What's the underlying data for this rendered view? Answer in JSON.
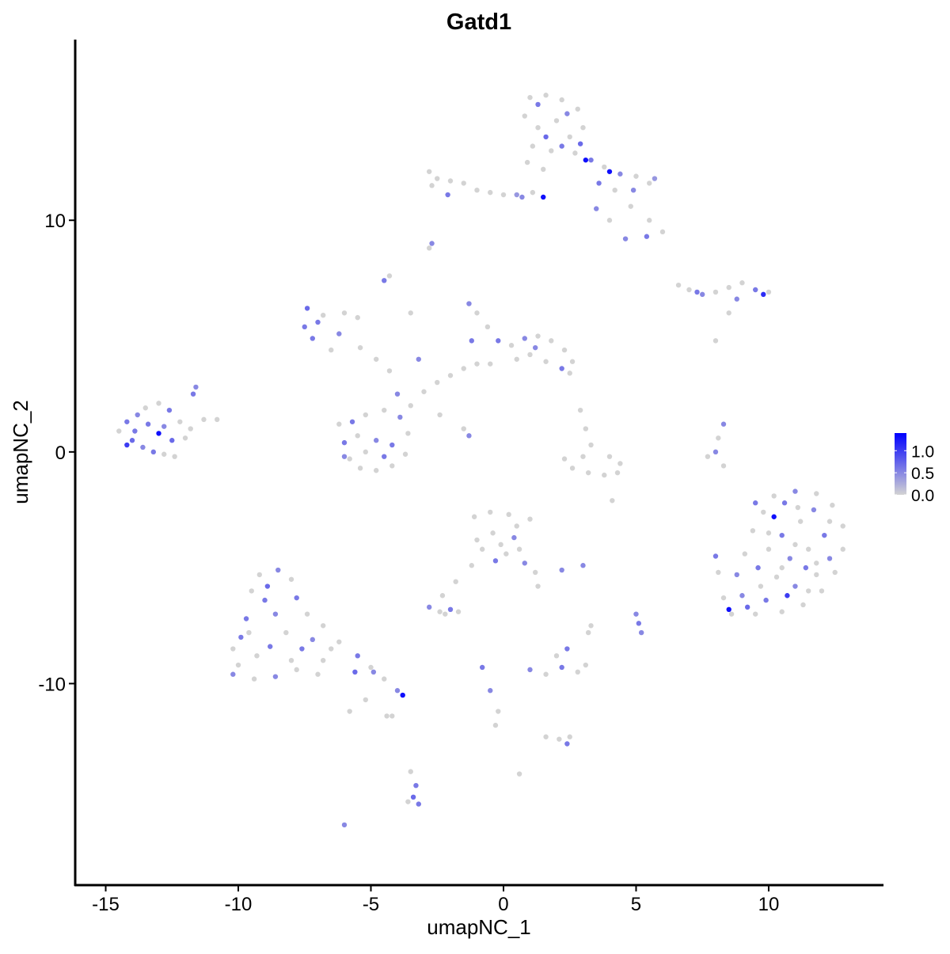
{
  "chart_data": {
    "type": "scatter",
    "title": "Gatd1",
    "xlabel": "umapNC_1",
    "ylabel": "umapNC_2",
    "xlim": [
      -16.15,
      14.3
    ],
    "ylim": [
      -18.7,
      17.8
    ],
    "x_ticks": [
      -15,
      -10,
      -5,
      0,
      5,
      10
    ],
    "x_tick_labels": [
      "-15",
      "-10",
      "-5",
      "0",
      "5",
      "10"
    ],
    "y_ticks": [
      10,
      0,
      -10
    ],
    "y_tick_labels": [
      "10",
      "0",
      "-10"
    ],
    "grid": false,
    "legend": {
      "placement": "right",
      "type": "colorbar",
      "ticks": [
        1.0,
        0.5,
        0.0
      ],
      "tick_labels": [
        "1.0",
        "0.5",
        "0.0"
      ],
      "range": [
        0,
        1.4
      ],
      "low_color": "#d3d3d3",
      "high_color": "#0000ff"
    },
    "point_fields": [
      "x",
      "y",
      "expression"
    ],
    "points": [
      [
        1.0,
        15.3,
        0
      ],
      [
        1.6,
        15.4,
        0
      ],
      [
        2.2,
        15.2,
        0
      ],
      [
        2.8,
        14.8,
        0
      ],
      [
        3.0,
        14.0,
        0
      ],
      [
        0.8,
        14.5,
        0
      ],
      [
        1.3,
        14.0,
        0
      ],
      [
        2.0,
        14.3,
        0
      ],
      [
        2.5,
        13.6,
        0
      ],
      [
        1.1,
        13.2,
        0
      ],
      [
        1.8,
        13.0,
        0
      ],
      [
        2.7,
        12.9,
        0
      ],
      [
        0.9,
        12.5,
        0
      ],
      [
        1.5,
        12.2,
        0
      ],
      [
        3.3,
        12.6,
        0.6
      ],
      [
        3.8,
        12.3,
        0
      ],
      [
        4.4,
        12.0,
        0.5
      ],
      [
        5.0,
        11.9,
        0
      ],
      [
        5.5,
        11.6,
        0
      ],
      [
        5.7,
        11.8,
        0.4
      ],
      [
        4.2,
        11.3,
        0
      ],
      [
        4.8,
        10.6,
        0
      ],
      [
        5.5,
        10.0,
        0
      ],
      [
        6.0,
        9.5,
        0
      ],
      [
        5.4,
        9.3,
        0.6
      ],
      [
        4.6,
        9.2,
        0.5
      ],
      [
        4.0,
        10.0,
        0
      ],
      [
        3.5,
        10.5,
        0.5
      ],
      [
        1.3,
        15.0,
        0.6
      ],
      [
        2.4,
        14.6,
        0.5
      ],
      [
        1.6,
        13.6,
        0.7
      ],
      [
        2.2,
        13.2,
        0.6
      ],
      [
        2.9,
        13.3,
        0.7
      ],
      [
        3.1,
        12.6,
        1.3
      ],
      [
        4.0,
        12.1,
        1.3
      ],
      [
        1.5,
        11.0,
        1.3
      ],
      [
        3.6,
        11.6,
        0.6
      ],
      [
        4.9,
        11.3,
        0.5
      ],
      [
        0.5,
        11.1,
        0.4
      ],
      [
        -2.8,
        12.1,
        0
      ],
      [
        -2.5,
        11.8,
        0
      ],
      [
        -2.0,
        11.7,
        0
      ],
      [
        -1.5,
        11.6,
        0
      ],
      [
        -1.0,
        11.3,
        0
      ],
      [
        -0.5,
        11.2,
        0
      ],
      [
        0.0,
        11.1,
        0
      ],
      [
        -2.7,
        11.5,
        0
      ],
      [
        -2.1,
        11.1,
        0.6
      ],
      [
        0.7,
        11.0,
        0.5
      ],
      [
        1.1,
        11.2,
        0
      ],
      [
        -2.7,
        9.0,
        0.5
      ],
      [
        -2.8,
        8.8,
        0
      ],
      [
        6.6,
        7.2,
        0
      ],
      [
        7.0,
        7.0,
        0
      ],
      [
        7.5,
        6.8,
        0.5
      ],
      [
        8.0,
        6.9,
        0
      ],
      [
        8.5,
        7.1,
        0
      ],
      [
        9.0,
        7.3,
        0
      ],
      [
        9.5,
        7.0,
        0.6
      ],
      [
        9.8,
        6.8,
        1.1
      ],
      [
        10.0,
        6.9,
        0
      ],
      [
        8.8,
        6.6,
        0.5
      ],
      [
        7.3,
        6.9,
        0.6
      ],
      [
        8.5,
        6.0,
        0
      ],
      [
        8.0,
        4.8,
        0
      ],
      [
        -14.5,
        0.9,
        0
      ],
      [
        -14.2,
        1.3,
        0.6
      ],
      [
        -13.8,
        1.6,
        0.5
      ],
      [
        -13.5,
        1.9,
        0
      ],
      [
        -13.0,
        2.1,
        0
      ],
      [
        -12.6,
        1.8,
        0.6
      ],
      [
        -12.2,
        1.3,
        0
      ],
      [
        -11.8,
        1.0,
        0
      ],
      [
        -11.3,
        1.4,
        0
      ],
      [
        -10.8,
        1.4,
        0
      ],
      [
        -11.6,
        2.8,
        0.5
      ],
      [
        -11.7,
        2.5,
        0.6
      ],
      [
        -14.0,
        0.5,
        0.7
      ],
      [
        -13.6,
        0.2,
        0.5
      ],
      [
        -13.2,
        0.0,
        0.6
      ],
      [
        -12.8,
        -0.1,
        0
      ],
      [
        -12.4,
        -0.2,
        0
      ],
      [
        -13.0,
        0.8,
        1.3
      ],
      [
        -13.9,
        0.9,
        0.6
      ],
      [
        -12.8,
        1.1,
        0.5
      ],
      [
        -12.5,
        0.5,
        0.7
      ],
      [
        -14.2,
        0.3,
        1.0
      ],
      [
        -13.4,
        1.2,
        0.6
      ],
      [
        -12.0,
        0.6,
        0
      ],
      [
        -6.2,
        1.2,
        0
      ],
      [
        -6.0,
        0.4,
        0.6
      ],
      [
        -5.8,
        -0.3,
        0
      ],
      [
        -5.4,
        -0.7,
        0
      ],
      [
        -4.8,
        -0.8,
        0
      ],
      [
        -4.2,
        -0.6,
        0
      ],
      [
        -3.7,
        -0.1,
        0
      ],
      [
        -3.6,
        0.8,
        0
      ],
      [
        -3.9,
        1.5,
        0.5
      ],
      [
        -4.5,
        1.8,
        0
      ],
      [
        -5.2,
        1.6,
        0
      ],
      [
        -5.7,
        1.3,
        0.6
      ],
      [
        -4.8,
        0.5,
        0.5
      ],
      [
        -5.2,
        0.0,
        0
      ],
      [
        -4.2,
        0.3,
        0.6
      ],
      [
        -5.5,
        0.7,
        0
      ],
      [
        -4.5,
        -0.2,
        0.6
      ],
      [
        -6.0,
        -0.2,
        0.5
      ],
      [
        -3.5,
        2.0,
        0
      ],
      [
        -3.0,
        2.6,
        0
      ],
      [
        -2.5,
        3.0,
        0
      ],
      [
        -2.0,
        3.3,
        0
      ],
      [
        -1.5,
        3.6,
        0
      ],
      [
        -1.0,
        3.8,
        0
      ],
      [
        -4.0,
        2.5,
        0.5
      ],
      [
        -4.3,
        3.5,
        0
      ],
      [
        -4.8,
        4.0,
        0
      ],
      [
        -5.4,
        4.5,
        0
      ],
      [
        -6.2,
        5.1,
        0.5
      ],
      [
        -7.0,
        5.6,
        0.6
      ],
      [
        -7.4,
        6.2,
        0.7
      ],
      [
        -6.8,
        5.9,
        0
      ],
      [
        -6.0,
        6.0,
        0
      ],
      [
        -5.5,
        5.8,
        0
      ],
      [
        -7.5,
        5.4,
        0.6
      ],
      [
        -7.2,
        4.9,
        0.6
      ],
      [
        -6.5,
        4.4,
        0
      ],
      [
        -4.5,
        7.4,
        0.6
      ],
      [
        -4.3,
        7.6,
        0
      ],
      [
        -3.5,
        6.0,
        0
      ],
      [
        -3.2,
        4.0,
        0.5
      ],
      [
        -2.4,
        1.6,
        0
      ],
      [
        -1.5,
        1.0,
        0
      ],
      [
        -1.3,
        0.7,
        0.5
      ],
      [
        -1.3,
        6.4,
        0.5
      ],
      [
        -1.0,
        6.0,
        0
      ],
      [
        -0.6,
        5.4,
        0
      ],
      [
        -0.2,
        4.8,
        0.6
      ],
      [
        0.3,
        4.6,
        0
      ],
      [
        0.8,
        4.9,
        0.5
      ],
      [
        1.3,
        5.0,
        0
      ],
      [
        1.8,
        4.8,
        0
      ],
      [
        2.3,
        4.4,
        0
      ],
      [
        2.6,
        3.9,
        0
      ],
      [
        2.2,
        3.6,
        0.6
      ],
      [
        1.6,
        3.9,
        0
      ],
      [
        1.0,
        4.2,
        0
      ],
      [
        0.5,
        4.0,
        0
      ],
      [
        -0.5,
        3.8,
        0
      ],
      [
        -1.2,
        4.8,
        0.6
      ],
      [
        1.2,
        4.5,
        0.5
      ],
      [
        2.5,
        3.4,
        0
      ],
      [
        2.9,
        1.8,
        0
      ],
      [
        3.1,
        1.0,
        0
      ],
      [
        3.3,
        0.3,
        0
      ],
      [
        3.0,
        -0.2,
        0
      ],
      [
        2.3,
        -0.3,
        0
      ],
      [
        2.6,
        -0.7,
        0
      ],
      [
        3.2,
        -0.9,
        0
      ],
      [
        3.8,
        -1.0,
        0
      ],
      [
        4.3,
        -0.9,
        0
      ],
      [
        4.4,
        -0.5,
        0
      ],
      [
        4.0,
        -0.2,
        0
      ],
      [
        4.1,
        -2.1,
        0
      ],
      [
        8.3,
        1.2,
        0.5
      ],
      [
        8.1,
        0.6,
        0
      ],
      [
        8.0,
        0.0,
        0.5
      ],
      [
        7.7,
        -0.2,
        0
      ],
      [
        8.3,
        -0.6,
        0
      ],
      [
        9.5,
        -2.2,
        0.6
      ],
      [
        10.2,
        -1.9,
        0
      ],
      [
        11.0,
        -1.7,
        0.5
      ],
      [
        11.8,
        -1.8,
        0
      ],
      [
        12.4,
        -2.3,
        0
      ],
      [
        12.8,
        -3.2,
        0
      ],
      [
        12.8,
        -4.2,
        0
      ],
      [
        12.5,
        -5.2,
        0
      ],
      [
        12.0,
        -6.0,
        0
      ],
      [
        11.3,
        -6.6,
        0
      ],
      [
        10.5,
        -6.9,
        0
      ],
      [
        9.5,
        -7.0,
        0
      ],
      [
        8.6,
        -7.0,
        0
      ],
      [
        8.3,
        -6.3,
        0
      ],
      [
        8.8,
        -5.3,
        0.5
      ],
      [
        9.1,
        -4.4,
        0
      ],
      [
        9.4,
        -3.4,
        0
      ],
      [
        10.2,
        -2.8,
        1.3
      ],
      [
        10.5,
        -3.6,
        0.6
      ],
      [
        11.2,
        -3.0,
        0
      ],
      [
        11.7,
        -2.5,
        0.5
      ],
      [
        12.1,
        -3.6,
        0.6
      ],
      [
        11.5,
        -4.2,
        0
      ],
      [
        10.8,
        -4.6,
        0.5
      ],
      [
        10.0,
        -4.2,
        0
      ],
      [
        9.6,
        -5.0,
        0.6
      ],
      [
        10.3,
        -5.4,
        0
      ],
      [
        11.0,
        -5.8,
        0.5
      ],
      [
        11.8,
        -5.3,
        0
      ],
      [
        12.3,
        -4.6,
        0.5
      ],
      [
        9.0,
        -6.2,
        0.5
      ],
      [
        9.9,
        -6.4,
        0.6
      ],
      [
        10.7,
        -6.2,
        1.0
      ],
      [
        11.5,
        -6.0,
        0
      ],
      [
        10.0,
        -3.5,
        0
      ],
      [
        11.0,
        -4.0,
        0
      ],
      [
        10.5,
        -5.0,
        0
      ],
      [
        11.4,
        -5.0,
        0.6
      ],
      [
        9.7,
        -5.8,
        0
      ],
      [
        8.5,
        -6.8,
        1.3
      ],
      [
        8.0,
        -4.5,
        0.6
      ],
      [
        8.1,
        -5.2,
        0
      ],
      [
        11.8,
        -4.8,
        0
      ],
      [
        12.3,
        -3.0,
        0
      ],
      [
        11.1,
        -2.4,
        0
      ],
      [
        9.8,
        -2.6,
        0
      ],
      [
        10.6,
        -2.2,
        0.6
      ],
      [
        9.2,
        -6.7,
        0.7
      ],
      [
        -9.2,
        -5.3,
        0
      ],
      [
        -8.5,
        -5.1,
        0.5
      ],
      [
        -8.0,
        -5.5,
        0
      ],
      [
        -7.8,
        -6.3,
        0.6
      ],
      [
        -7.4,
        -7.0,
        0
      ],
      [
        -6.8,
        -7.5,
        0
      ],
      [
        -6.2,
        -8.2,
        0
      ],
      [
        -5.5,
        -8.8,
        0.6
      ],
      [
        -5.0,
        -9.3,
        0
      ],
      [
        -4.5,
        -9.8,
        0
      ],
      [
        -4.0,
        -10.3,
        0.5
      ],
      [
        -3.8,
        -10.5,
        1.3
      ],
      [
        -5.6,
        -9.5,
        0.7
      ],
      [
        -6.5,
        -8.5,
        0
      ],
      [
        -10.2,
        -8.5,
        0
      ],
      [
        -10.0,
        -9.2,
        0
      ],
      [
        -9.4,
        -9.8,
        0
      ],
      [
        -8.6,
        -9.7,
        0.5
      ],
      [
        -7.8,
        -9.4,
        0
      ],
      [
        -7.0,
        -9.6,
        0
      ],
      [
        -9.7,
        -7.2,
        0.6
      ],
      [
        -9.5,
        -6.0,
        0
      ],
      [
        -9.0,
        -6.4,
        0.6
      ],
      [
        -8.6,
        -7.0,
        0.5
      ],
      [
        -8.2,
        -7.8,
        0
      ],
      [
        -8.8,
        -8.4,
        0.6
      ],
      [
        -9.3,
        -8.8,
        0
      ],
      [
        -7.6,
        -8.5,
        0.6
      ],
      [
        -8.0,
        -9.0,
        0
      ],
      [
        -10.2,
        -9.6,
        0.5
      ],
      [
        -9.6,
        -7.8,
        0
      ],
      [
        -8.9,
        -5.8,
        0.7
      ],
      [
        -7.2,
        -8.1,
        0.5
      ],
      [
        -6.8,
        -9.0,
        0
      ],
      [
        -9.9,
        -8.0,
        0.6
      ],
      [
        -5.8,
        -11.2,
        0
      ],
      [
        -4.2,
        -11.4,
        0
      ],
      [
        -4.9,
        -9.5,
        0.5
      ],
      [
        -1.1,
        -2.8,
        0
      ],
      [
        -0.5,
        -2.6,
        0
      ],
      [
        0.2,
        -2.7,
        0
      ],
      [
        0.5,
        -3.2,
        0
      ],
      [
        -0.4,
        -3.5,
        0
      ],
      [
        -1.0,
        -3.8,
        0
      ],
      [
        -0.1,
        -4.0,
        0
      ],
      [
        0.4,
        -3.7,
        0.5
      ],
      [
        0.1,
        -4.4,
        0
      ],
      [
        0.8,
        -4.8,
        0.5
      ],
      [
        1.2,
        -5.2,
        0
      ],
      [
        1.3,
        -5.8,
        0
      ],
      [
        -0.3,
        -4.7,
        0.6
      ],
      [
        0.6,
        -4.2,
        0
      ],
      [
        -0.8,
        -4.2,
        0
      ],
      [
        -1.2,
        -4.9,
        0
      ],
      [
        -1.8,
        -5.6,
        0
      ],
      [
        -2.3,
        -6.2,
        0
      ],
      [
        1.0,
        -2.9,
        0
      ],
      [
        2.2,
        -5.1,
        0.5
      ],
      [
        3.0,
        -4.9,
        0.5
      ],
      [
        -2.8,
        -6.7,
        0.5
      ],
      [
        -2.4,
        -6.9,
        0
      ],
      [
        -2.0,
        -6.8,
        0.6
      ],
      [
        -1.7,
        -6.9,
        0
      ],
      [
        -2.2,
        -7.0,
        0
      ],
      [
        1.0,
        -9.4,
        0.5
      ],
      [
        1.6,
        -9.6,
        0
      ],
      [
        2.2,
        -9.3,
        0.6
      ],
      [
        2.8,
        -9.5,
        0
      ],
      [
        3.1,
        -9.2,
        0
      ],
      [
        2.0,
        -8.8,
        0
      ],
      [
        2.4,
        -8.5,
        0.6
      ],
      [
        5.0,
        -7.0,
        0.5
      ],
      [
        5.1,
        -7.4,
        0.6
      ],
      [
        5.2,
        -7.8,
        0.5
      ],
      [
        3.3,
        -7.5,
        0
      ],
      [
        3.2,
        -7.8,
        0
      ],
      [
        -3.5,
        -13.8,
        0
      ],
      [
        -3.3,
        -14.4,
        0.6
      ],
      [
        -3.4,
        -14.9,
        0.7
      ],
      [
        -3.2,
        -15.2,
        0.6
      ],
      [
        -3.6,
        -15.1,
        0
      ],
      [
        1.6,
        -12.3,
        0
      ],
      [
        2.1,
        -12.4,
        0
      ],
      [
        2.4,
        -12.6,
        0.6
      ],
      [
        2.5,
        -12.3,
        0
      ],
      [
        -0.8,
        -9.3,
        0.6
      ],
      [
        -0.5,
        -10.3,
        0.5
      ],
      [
        -0.2,
        -11.2,
        0
      ],
      [
        -0.3,
        -11.8,
        0
      ],
      [
        0.6,
        -13.9,
        0
      ],
      [
        -6.0,
        -16.1,
        0.5
      ],
      [
        -4.4,
        -11.4,
        0
      ],
      [
        -5.2,
        -10.7,
        0
      ]
    ]
  }
}
